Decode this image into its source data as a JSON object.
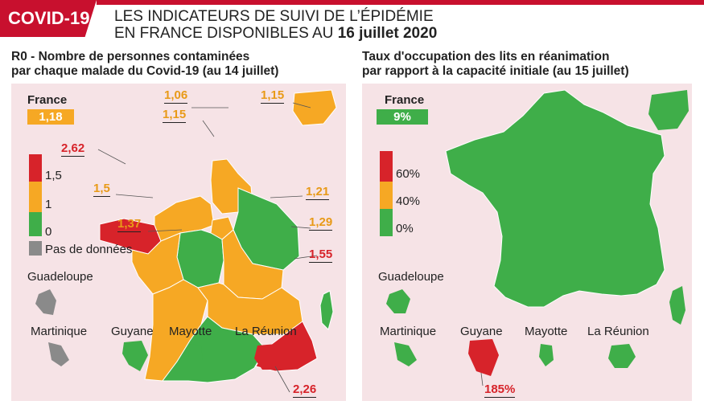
{
  "header": {
    "badge": "COVID-19",
    "line1": "LES INDICATEURS DE SUIVI DE L’ÉPIDÉMIE",
    "line2_prefix": "EN FRANCE DISPONIBLES AU",
    "line2_date": "16 juillet 2020"
  },
  "left_panel": {
    "title_line1": "R0 - Nombre de personnes contaminées",
    "title_line2": "par chaque malade du Covid-19 (au 14 juillet)",
    "france_label": "France",
    "france_value": "1,18",
    "legend": {
      "top": "1,5",
      "mid": "1",
      "low": "0",
      "nodata": "Pas de données"
    },
    "region_values": {
      "hauts_de_france": "1,06",
      "normandie": "1,15",
      "corse": "1,15",
      "bretagne": "2,62",
      "pays_de_la_loire": "1,5",
      "grand_est": "1,21",
      "auvergne_rhone_alpes": "1,29",
      "nouvelle_aquitaine": "1,37",
      "paca": "1,55",
      "la_reunion": "2,26"
    },
    "dom_labels": {
      "guadeloupe": "Guadeloupe",
      "martinique": "Martinique",
      "guyane": "Guyane",
      "mayotte": "Mayotte",
      "reunion": "La Réunion"
    }
  },
  "right_panel": {
    "title_line1": "Taux d'occupation des lits en réanimation",
    "title_line2": "par rapport à la capacité initiale (au 15 juillet)",
    "france_label": "France",
    "france_value": "9%",
    "legend": {
      "top": "60%",
      "mid": "40%",
      "low": "0%"
    },
    "guyane_value": "185%",
    "dom_labels": {
      "guadeloupe": "Guadeloupe",
      "martinique": "Martinique",
      "guyane": "Guyane",
      "mayotte": "Mayotte",
      "reunion": "La Réunion"
    }
  },
  "colors": {
    "red": "#d7232a",
    "orange": "#f6a824",
    "green": "#3fae49",
    "grey": "#8a8a8a",
    "brand": "#c8102e"
  }
}
